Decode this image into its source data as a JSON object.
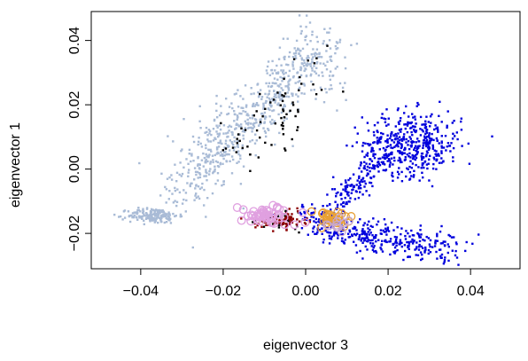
{
  "chart_data": {
    "type": "scatter",
    "title": "",
    "xlabel": "eigenvector 3",
    "ylabel": "eigenvector 1",
    "xlim": [
      -0.052,
      0.052
    ],
    "ylim": [
      -0.031,
      0.049
    ],
    "x_ticks": [
      -0.04,
      -0.02,
      0.0,
      0.02,
      0.04
    ],
    "x_tick_labels": [
      "−0.04",
      "−0.02",
      "0.00",
      "0.02",
      "0.04"
    ],
    "y_ticks": [
      -0.02,
      0.0,
      0.02,
      0.04
    ],
    "y_tick_labels": [
      "−0.02",
      "0.00",
      "0.02",
      "0.04"
    ],
    "grid": false,
    "legend": "none",
    "groups": [
      {
        "id": "lightsteelblue",
        "color": "#a9bbd6",
        "marker": "small-square",
        "clusters": [
          {
            "n": 700,
            "x_range": [
              -0.03,
              0.005
            ],
            "y_center_at_x": [
              [
                -0.03,
                -0.003
              ],
              [
                -0.015,
                0.013
              ],
              [
                0.0,
                0.033
              ]
            ],
            "spread_x": 0.004,
            "spread_y": 0.006
          },
          {
            "n": 170,
            "x_mean": -0.037,
            "y_mean": -0.0145,
            "sd_x": 0.003,
            "sd_y": 0.0012
          }
        ]
      },
      {
        "id": "blue",
        "color": "#0000dd",
        "marker": "small-square",
        "clusters": [
          {
            "n": 420,
            "x_mean": 0.026,
            "y_mean": 0.008,
            "sd_x": 0.006,
            "sd_y": 0.005
          },
          {
            "n": 380,
            "x_range": [
              0.0,
              0.035
            ],
            "y_center_at_x": [
              [
                0.0,
                -0.016
              ],
              [
                0.015,
                -0.021
              ],
              [
                0.03,
                -0.024
              ]
            ],
            "spread_x": 0.004,
            "spread_y": 0.0025
          },
          {
            "n": 170,
            "x_range": [
              0.006,
              0.02
            ],
            "y_center_at_x": [
              [
                0.006,
                -0.013
              ],
              [
                0.02,
                0.006
              ]
            ],
            "spread_x": 0.002,
            "spread_y": 0.003
          }
        ]
      },
      {
        "id": "black",
        "color": "#000000",
        "marker": "small-square",
        "clusters": [
          {
            "n": 70,
            "x_range": [
              -0.02,
              0.003
            ],
            "y_center_at_x": [
              [
                -0.02,
                0.004
              ],
              [
                0.003,
                0.03
              ]
            ],
            "spread_x": 0.003,
            "spread_y": 0.007
          },
          {
            "n": 30,
            "x_mean": -0.006,
            "y_mean": -0.016,
            "sd_x": 0.004,
            "sd_y": 0.002
          }
        ]
      },
      {
        "id": "darkred",
        "color": "#8b0000",
        "marker": "small-square",
        "clusters": [
          {
            "n": 90,
            "x_mean": -0.006,
            "y_mean": -0.016,
            "sd_x": 0.003,
            "sd_y": 0.0013
          }
        ]
      },
      {
        "id": "orange",
        "color": "#e8a035",
        "marker": "open-circle",
        "clusters": [
          {
            "n": 30,
            "x_mean": 0.006,
            "y_mean": -0.0155,
            "sd_x": 0.003,
            "sd_y": 0.0015
          }
        ]
      },
      {
        "id": "violet",
        "color": "#e0a0e0",
        "marker": "open-circle",
        "clusters": [
          {
            "n": 50,
            "x_mean": -0.009,
            "y_mean": -0.0145,
            "sd_x": 0.0035,
            "sd_y": 0.0016
          }
        ]
      },
      {
        "id": "greyviolet",
        "color": "#c8a8d0",
        "marker": "open-circle",
        "clusters": [
          {
            "n": 10,
            "x_mean": 0.008,
            "y_mean": -0.017,
            "sd_x": 0.002,
            "sd_y": 0.001
          }
        ]
      }
    ]
  }
}
